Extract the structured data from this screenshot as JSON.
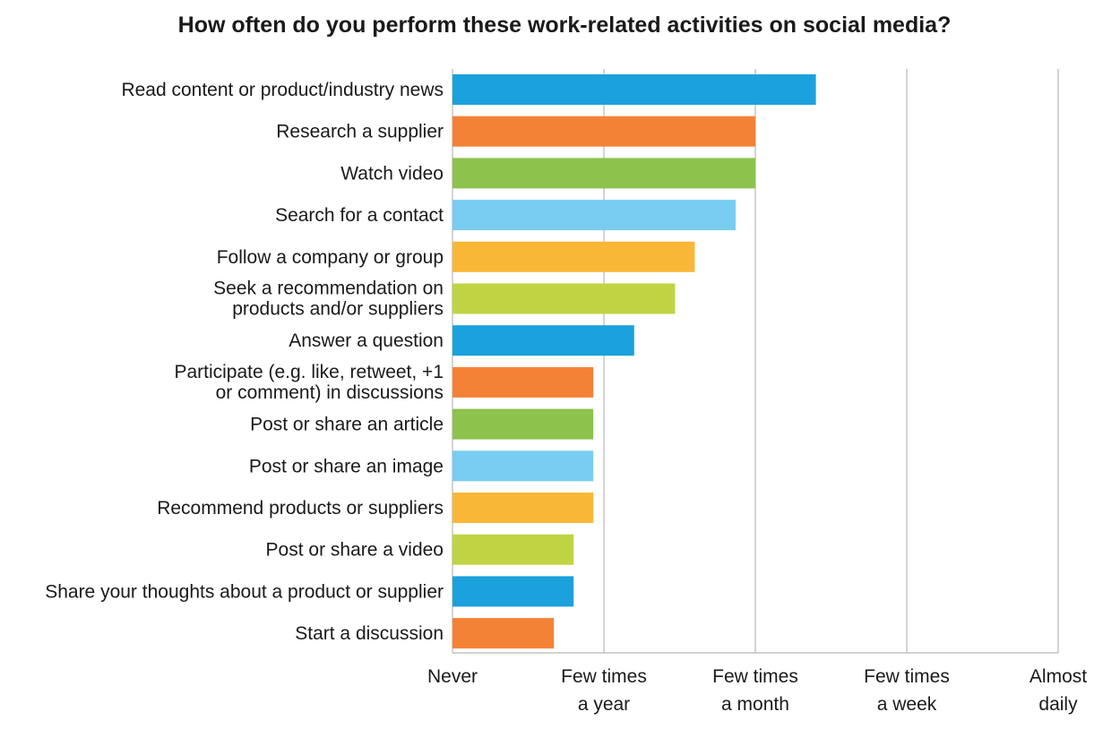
{
  "chart_data": {
    "type": "bar",
    "orientation": "horizontal",
    "title": "How often do you perform these work-related activities on social media?",
    "xlabel": "",
    "ylabel": "",
    "xlim": [
      0,
      4
    ],
    "grid": true,
    "ticks": [
      {
        "value": 0,
        "lines": [
          "Never"
        ]
      },
      {
        "value": 1,
        "lines": [
          "Few times",
          "a year"
        ]
      },
      {
        "value": 2,
        "lines": [
          "Few times",
          "a month"
        ]
      },
      {
        "value": 3,
        "lines": [
          "Few times",
          "a week"
        ]
      },
      {
        "value": 4,
        "lines": [
          "Almost",
          "daily"
        ]
      }
    ],
    "categories": [
      [
        "Read content or product/industry news"
      ],
      [
        "Research a supplier"
      ],
      [
        "Watch video"
      ],
      [
        "Search for a contact"
      ],
      [
        "Follow a company or group"
      ],
      [
        "Seek a recommendation on",
        "products and/or suppliers"
      ],
      [
        "Answer a question"
      ],
      [
        "Participate (e.g. like, retweet, +1",
        "or comment) in discussions"
      ],
      [
        "Post or share an article"
      ],
      [
        "Post or share an image"
      ],
      [
        "Recommend products or suppliers"
      ],
      [
        "Post or share a video"
      ],
      [
        "Share your thoughts about a product or supplier"
      ],
      [
        "Start a discussion"
      ]
    ],
    "values": [
      2.4,
      2.0,
      2.0,
      1.87,
      1.6,
      1.47,
      1.2,
      0.93,
      0.93,
      0.93,
      0.93,
      0.8,
      0.8,
      0.67
    ],
    "colors": [
      "#1ba1dc",
      "#f48236",
      "#8dc24d",
      "#78cdf1",
      "#f9b737",
      "#c0d443",
      "#1ba1dc",
      "#f48236",
      "#8dc24d",
      "#78cdf1",
      "#f9b737",
      "#c0d443",
      "#1ba1dc",
      "#f48236"
    ]
  }
}
